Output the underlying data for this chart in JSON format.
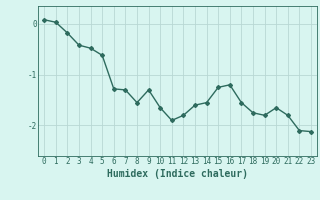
{
  "x": [
    0,
    1,
    2,
    3,
    4,
    5,
    6,
    7,
    8,
    9,
    10,
    11,
    12,
    13,
    14,
    15,
    16,
    17,
    18,
    19,
    20,
    21,
    22,
    23
  ],
  "y": [
    0.08,
    0.03,
    -0.18,
    -0.42,
    -0.48,
    -0.62,
    -1.28,
    -1.3,
    -1.55,
    -1.3,
    -1.65,
    -1.9,
    -1.8,
    -1.6,
    -1.55,
    -1.25,
    -1.2,
    -1.55,
    -1.75,
    -1.8,
    -1.65,
    -1.8,
    -2.1,
    -2.12
  ],
  "line_color": "#2e6b5e",
  "marker": "D",
  "marker_size": 2,
  "bg_color": "#d8f5f0",
  "grid_color": "#b8d8d4",
  "xlabel": "Humidex (Indice chaleur)",
  "xlabel_color": "#2e6b5e",
  "tick_color": "#2e6b5e",
  "yticks": [
    -2,
    -1,
    0
  ],
  "ylim": [
    -2.6,
    0.35
  ],
  "xlim": [
    -0.5,
    23.5
  ],
  "xticks": [
    0,
    1,
    2,
    3,
    4,
    5,
    6,
    7,
    8,
    9,
    10,
    11,
    12,
    13,
    14,
    15,
    16,
    17,
    18,
    19,
    20,
    21,
    22,
    23
  ],
  "xtick_labels": [
    "0",
    "1",
    "2",
    "3",
    "4",
    "5",
    "6",
    "7",
    "8",
    "9",
    "10",
    "11",
    "12",
    "13",
    "14",
    "15",
    "16",
    "17",
    "18",
    "19",
    "20",
    "21",
    "22",
    "23"
  ],
  "font_size": 5.5,
  "label_font_size": 7,
  "line_width": 1.0
}
